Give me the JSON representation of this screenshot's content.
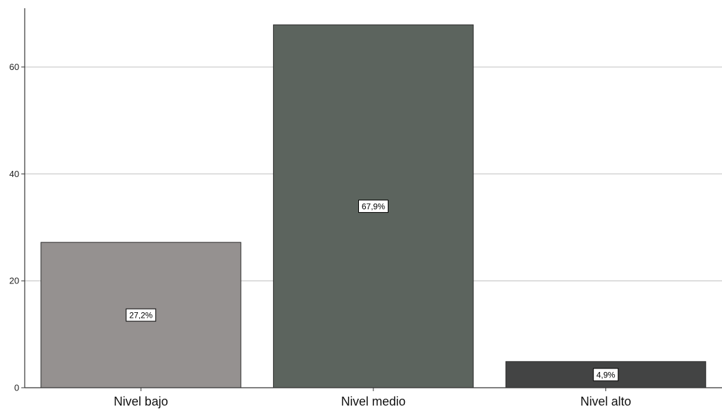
{
  "chart_data": {
    "type": "bar",
    "title": "",
    "xlabel": "",
    "ylabel": "",
    "categories": [
      "Nivel bajo",
      "Nivel medio",
      "Nivel alto"
    ],
    "values": [
      27.2,
      67.9,
      4.9
    ],
    "data_labels": [
      "27,2%",
      "67,9%",
      "4,9%"
    ],
    "colors": [
      "#959190",
      "#5c645e",
      "#434444"
    ],
    "ylim": [
      0,
      71
    ],
    "yticks": [
      0,
      20,
      40,
      60
    ],
    "grid": true
  }
}
